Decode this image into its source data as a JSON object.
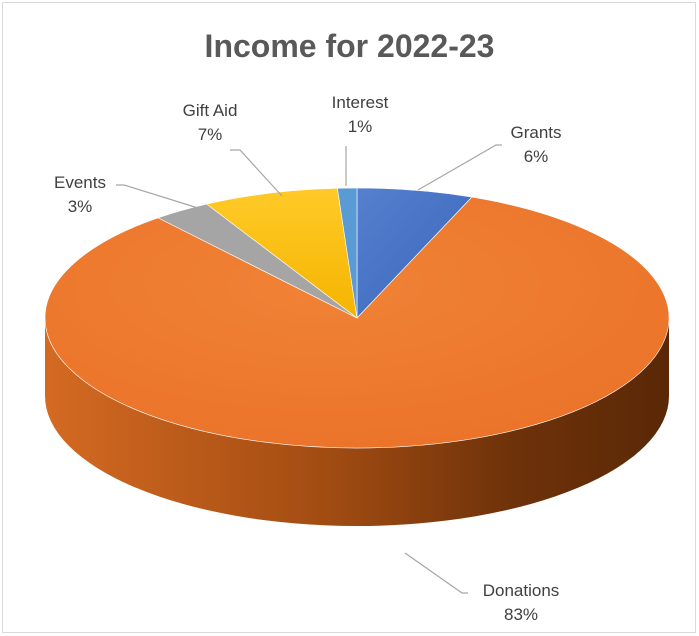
{
  "chart_data": {
    "type": "pie",
    "title": "Income for 2022-23",
    "slices": [
      {
        "label": "Grants",
        "value": 6,
        "display": "6%",
        "color": "#4472c4"
      },
      {
        "label": "Donations",
        "value": 83,
        "display": "83%",
        "color": "#ed7d31"
      },
      {
        "label": "Events",
        "value": 3,
        "display": "3%",
        "color": "#a5a5a5"
      },
      {
        "label": "Gift Aid",
        "value": 7,
        "display": "7%",
        "color": "#ffc000"
      },
      {
        "label": "Interest",
        "value": 1,
        "display": "1%",
        "color": "#5b9bd5"
      }
    ],
    "legend": "none",
    "style": "3d-pie"
  }
}
